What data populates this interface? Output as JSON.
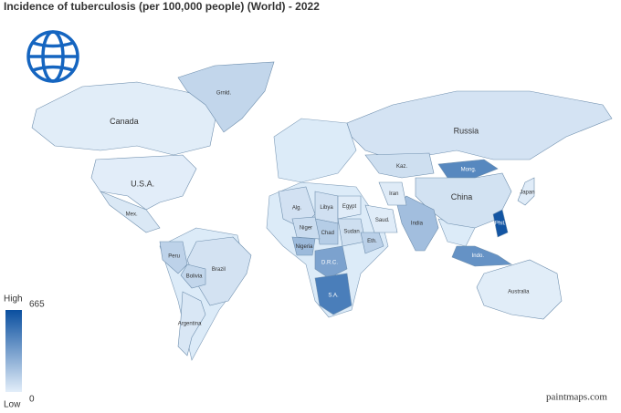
{
  "title": "Incidence of tuberculosis (per 100,000 people) (World) - 2022",
  "legend": {
    "high_label": "High",
    "low_label": "Low",
    "max": 665,
    "min": 0,
    "colors": [
      "#e3eef9",
      "#0a4f9f"
    ]
  },
  "countries": [
    {
      "label": "Canada",
      "value": 6
    },
    {
      "label": "U.S.A.",
      "value": 3
    },
    {
      "label": "Grnld.",
      "value": 100
    },
    {
      "label": "Mex.",
      "value": 27
    },
    {
      "label": "Brazil",
      "value": 49
    },
    {
      "label": "Peru",
      "value": 116
    },
    {
      "label": "Bolivia",
      "value": 101
    },
    {
      "label": "Argentina",
      "value": 31
    },
    {
      "label": "Russia",
      "value": 45
    },
    {
      "label": "Kaz.",
      "value": 63
    },
    {
      "label": "Mong.",
      "value": 428
    },
    {
      "label": "China",
      "value": 52
    },
    {
      "label": "India",
      "value": 199
    },
    {
      "label": "Japan",
      "value": 10
    },
    {
      "label": "Indo.",
      "value": 385
    },
    {
      "label": "Phil.",
      "value": 638
    },
    {
      "label": "Australia",
      "value": 6
    },
    {
      "label": "Alg.",
      "value": 53
    },
    {
      "label": "Libya",
      "value": 59
    },
    {
      "label": "Egypt",
      "value": 9
    },
    {
      "label": "Sudan",
      "value": 63
    },
    {
      "label": "Chad",
      "value": 140
    },
    {
      "label": "Niger",
      "value": 77
    },
    {
      "label": "Nigeria",
      "value": 219
    },
    {
      "label": "D.R.C.",
      "value": 317
    },
    {
      "label": "Eth.",
      "value": 126
    },
    {
      "label": "Saud.",
      "value": 8
    },
    {
      "label": "Iran",
      "value": 12
    },
    {
      "label": "S.A.",
      "value": 468
    }
  ],
  "watermark": "paintmaps.com"
}
